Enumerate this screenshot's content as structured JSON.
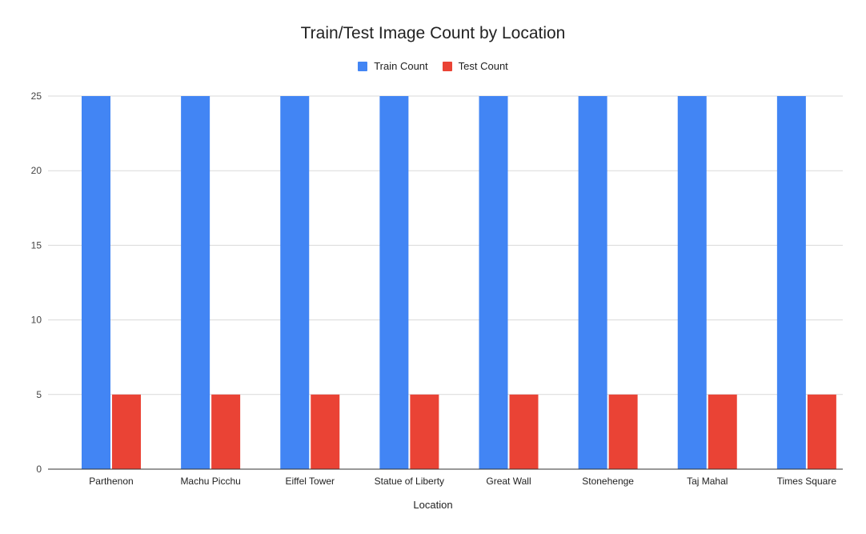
{
  "chart_data": {
    "type": "bar",
    "title": "Train/Test Image Count by Location",
    "xlabel": "Location",
    "ylabel": "",
    "ylim": [
      0,
      25
    ],
    "yticks": [
      0,
      5,
      10,
      15,
      20,
      25
    ],
    "grid": true,
    "legend_position": "top",
    "categories": [
      "Parthenon",
      "Machu Picchu",
      "Eiffel Tower",
      "Statue of Liberty",
      "Great Wall",
      "Stonehenge",
      "Taj Mahal",
      "Times Square"
    ],
    "series": [
      {
        "name": "Train Count",
        "color": "#4285f4",
        "values": [
          25,
          25,
          25,
          25,
          25,
          25,
          25,
          25
        ]
      },
      {
        "name": "Test Count",
        "color": "#ea4335",
        "values": [
          5,
          5,
          5,
          5,
          5,
          5,
          5,
          5
        ]
      }
    ]
  }
}
